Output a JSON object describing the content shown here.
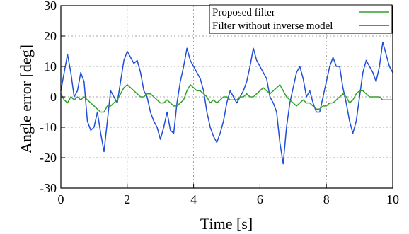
{
  "chart_data": {
    "type": "line",
    "xlabel": "Time [s]",
    "ylabel": "Angle error [deg]",
    "xlim": [
      0,
      10
    ],
    "ylim": [
      -30,
      30
    ],
    "x_ticks": [
      0,
      2,
      4,
      6,
      8,
      10
    ],
    "y_ticks": [
      -30,
      -20,
      -10,
      0,
      10,
      20,
      30
    ],
    "grid": "dotted",
    "legend_position": "top-right",
    "series": [
      {
        "name": "Proposed filter",
        "color": "#33a02c",
        "x": [
          0,
          0.1,
          0.2,
          0.3,
          0.4,
          0.5,
          0.6,
          0.7,
          0.8,
          0.9,
          1.0,
          1.1,
          1.2,
          1.3,
          1.4,
          1.5,
          1.6,
          1.7,
          1.8,
          1.9,
          2.0,
          2.1,
          2.2,
          2.3,
          2.4,
          2.5,
          2.6,
          2.7,
          2.8,
          2.9,
          3.0,
          3.1,
          3.2,
          3.3,
          3.4,
          3.5,
          3.6,
          3.7,
          3.8,
          3.9,
          4.0,
          4.1,
          4.2,
          4.3,
          4.4,
          4.5,
          4.6,
          4.7,
          4.8,
          4.9,
          5.0,
          5.1,
          5.2,
          5.3,
          5.4,
          5.5,
          5.6,
          5.7,
          5.8,
          5.9,
          6.0,
          6.1,
          6.2,
          6.3,
          6.4,
          6.5,
          6.6,
          6.7,
          6.8,
          6.9,
          7.0,
          7.1,
          7.2,
          7.3,
          7.4,
          7.5,
          7.6,
          7.7,
          7.8,
          7.9,
          8.0,
          8.1,
          8.2,
          8.3,
          8.4,
          8.5,
          8.6,
          8.7,
          8.8,
          8.9,
          9.0,
          9.1,
          9.2,
          9.3,
          9.4,
          9.5,
          9.6,
          9.7,
          9.8,
          9.9,
          10.0
        ],
        "values": [
          1,
          -1,
          -2,
          0,
          -1,
          0,
          -1,
          0,
          -1,
          -2,
          -3,
          -4,
          -5,
          -5,
          -3,
          -3,
          -2,
          -1,
          1,
          3,
          4,
          3,
          2,
          1,
          0,
          0,
          1,
          1,
          0,
          -1,
          -2,
          -2,
          -1,
          -2,
          -3,
          -3,
          -2,
          -1,
          2,
          4,
          3,
          2,
          2,
          1,
          0,
          -2,
          -1,
          -2,
          -1,
          0,
          0,
          -1,
          -1,
          -1,
          0,
          0,
          1,
          0,
          0,
          1,
          2,
          3,
          2,
          1,
          2,
          3,
          4,
          2,
          0,
          -1,
          -2,
          -3,
          -2,
          -1,
          -2,
          -2,
          -3,
          -4,
          -4,
          -3,
          -3,
          -2,
          -2,
          -1,
          0,
          1,
          0,
          -2,
          -1,
          1,
          2,
          2,
          1,
          0,
          0,
          0,
          0,
          -1,
          -1,
          -1,
          -1
        ]
      },
      {
        "name": "Filter without inverse model",
        "color": "#1f4fd8",
        "x": [
          0,
          0.1,
          0.2,
          0.3,
          0.4,
          0.5,
          0.6,
          0.7,
          0.8,
          0.9,
          1.0,
          1.1,
          1.2,
          1.3,
          1.4,
          1.5,
          1.6,
          1.7,
          1.8,
          1.9,
          2.0,
          2.1,
          2.2,
          2.3,
          2.4,
          2.5,
          2.6,
          2.7,
          2.8,
          2.9,
          3.0,
          3.1,
          3.2,
          3.3,
          3.4,
          3.5,
          3.6,
          3.7,
          3.8,
          3.9,
          4.0,
          4.1,
          4.2,
          4.3,
          4.4,
          4.5,
          4.6,
          4.7,
          4.8,
          4.9,
          5.0,
          5.1,
          5.2,
          5.3,
          5.4,
          5.5,
          5.6,
          5.7,
          5.8,
          5.9,
          6.0,
          6.1,
          6.2,
          6.3,
          6.4,
          6.5,
          6.6,
          6.7,
          6.8,
          6.9,
          7.0,
          7.1,
          7.2,
          7.3,
          7.4,
          7.5,
          7.6,
          7.7,
          7.8,
          7.9,
          8.0,
          8.1,
          8.2,
          8.3,
          8.4,
          8.5,
          8.6,
          8.7,
          8.8,
          8.9,
          9.0,
          9.1,
          9.2,
          9.3,
          9.4,
          9.5,
          9.6,
          9.7,
          9.8,
          9.9,
          10.0
        ],
        "values": [
          2,
          8,
          14,
          8,
          0,
          2,
          8,
          5,
          -8,
          -11,
          -10,
          -5,
          -12,
          -18,
          -8,
          2,
          0,
          -2,
          5,
          12,
          15,
          13,
          11,
          12,
          8,
          2,
          0,
          -5,
          -8,
          -10,
          -14,
          -10,
          -5,
          -11,
          -12,
          -2,
          5,
          10,
          16,
          12,
          10,
          8,
          6,
          2,
          -5,
          -10,
          -13,
          -15,
          -12,
          -8,
          -2,
          2,
          0,
          -2,
          0,
          2,
          5,
          10,
          16,
          12,
          10,
          8,
          6,
          0,
          -2,
          -5,
          -15,
          -22,
          -10,
          -2,
          3,
          8,
          10,
          6,
          0,
          2,
          -2,
          -5,
          -5,
          0,
          5,
          10,
          13,
          10,
          10,
          3,
          -2,
          -8,
          -12,
          -8,
          0,
          8,
          12,
          10,
          8,
          5,
          10,
          18,
          14,
          10,
          8
        ]
      }
    ]
  }
}
